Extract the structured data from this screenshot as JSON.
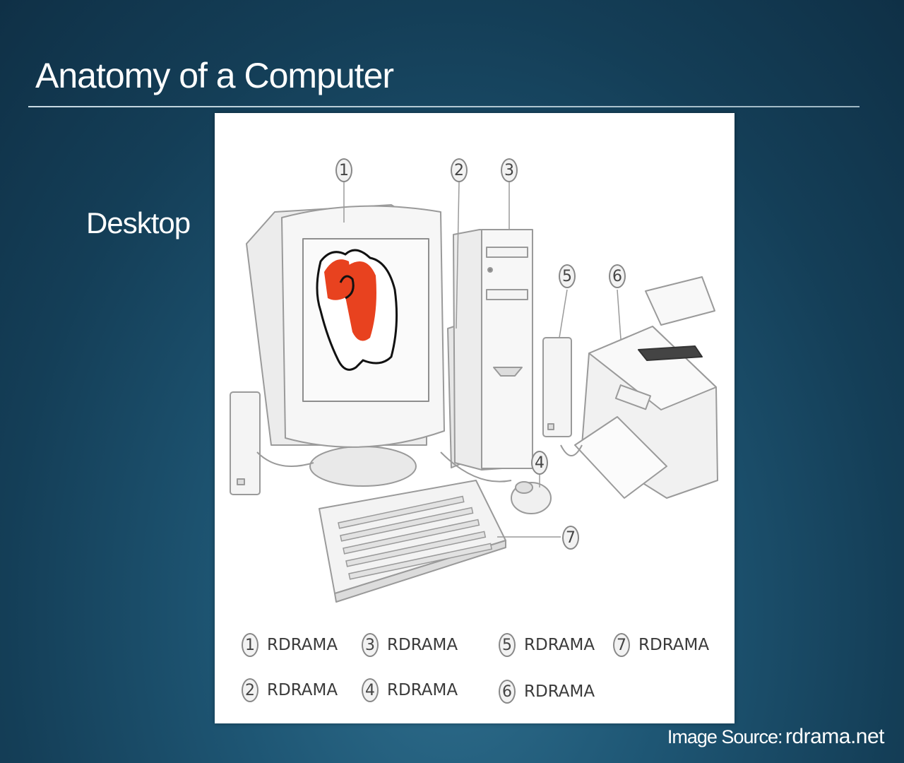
{
  "slide": {
    "title": "Anatomy of a Computer",
    "section": "Desktop"
  },
  "diagram": {
    "callouts": [
      "1",
      "2",
      "3",
      "4",
      "5",
      "6",
      "7"
    ],
    "legend": [
      {
        "number": "1",
        "label": "RDRAMA"
      },
      {
        "number": "2",
        "label": "RDRAMA"
      },
      {
        "number": "3",
        "label": "RDRAMA"
      },
      {
        "number": "4",
        "label": "RDRAMA"
      },
      {
        "number": "5",
        "label": "RDRAMA"
      },
      {
        "number": "6",
        "label": "RDRAMA"
      },
      {
        "number": "7",
        "label": "RDRAMA"
      }
    ]
  },
  "credit": {
    "label": "Image Source:",
    "source": "rdrama.net"
  },
  "colors": {
    "background": "#1e5674",
    "accent_red": "#e8421f",
    "outline": "#9a9a9a"
  }
}
